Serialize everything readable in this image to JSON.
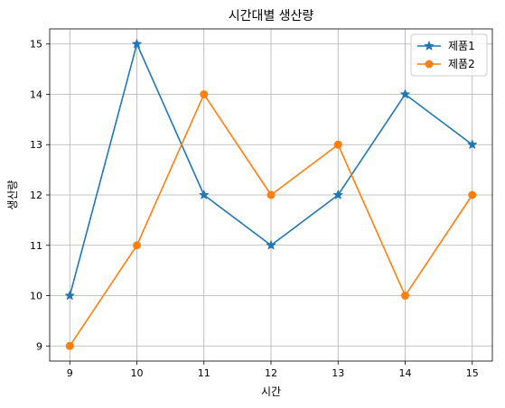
{
  "chart_data": {
    "type": "line",
    "title": "시간대별 생산량",
    "xlabel": "시간",
    "ylabel": "생산량",
    "x": [
      9,
      10,
      11,
      12,
      13,
      14,
      15
    ],
    "xlim": [
      8.7,
      15.3
    ],
    "ylim": [
      8.7,
      15.3
    ],
    "xticks": [
      9,
      10,
      11,
      12,
      13,
      14,
      15
    ],
    "yticks": [
      9,
      10,
      11,
      12,
      13,
      14,
      15
    ],
    "grid": true,
    "legend_position": "top-right",
    "series": [
      {
        "name": "제품1",
        "values": [
          10,
          15,
          12,
          11,
          12,
          14,
          13
        ],
        "color": "#1f77b4",
        "marker": "star"
      },
      {
        "name": "제품2",
        "values": [
          9,
          11,
          14,
          12,
          13,
          10,
          12
        ],
        "color": "#ff7f0e",
        "marker": "circle"
      }
    ]
  }
}
